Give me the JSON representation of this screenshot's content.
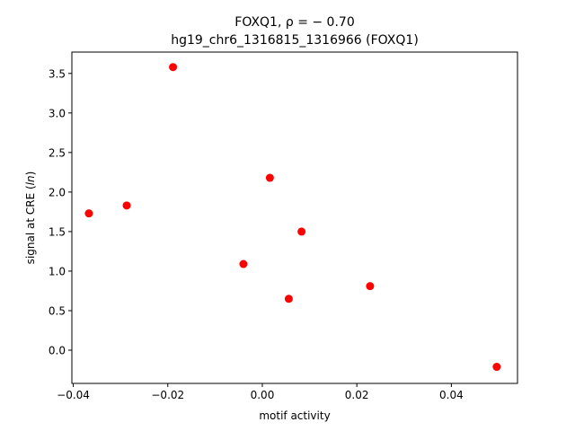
{
  "chart_data": {
    "type": "scatter",
    "title_line1": "FOXQ1, ρ = − 0.70",
    "title_line2": "hg19_chr6_1316815_1316966 (FOXQ1)",
    "xlabel": "motif activity",
    "ylabel_prefix": "signal at CRE (",
    "ylabel_italic": "ln",
    "ylabel_suffix": ")",
    "xlim": [
      -0.0403,
      0.054
    ],
    "ylim": [
      -0.42,
      3.77
    ],
    "xticks": [
      -0.04,
      -0.02,
      0.0,
      0.02,
      0.04
    ],
    "xtick_labels": [
      "−0.04",
      "−0.02",
      "0.00",
      "0.02",
      "0.04"
    ],
    "yticks": [
      0.0,
      0.5,
      1.0,
      1.5,
      2.0,
      2.5,
      3.0,
      3.5
    ],
    "ytick_labels": [
      "0.0",
      "0.5",
      "1.0",
      "1.5",
      "2.0",
      "2.5",
      "3.0",
      "3.5"
    ],
    "grid": false,
    "point_color": "#ff0000",
    "points": [
      {
        "x": -0.0367,
        "y": 1.73
      },
      {
        "x": -0.0287,
        "y": 1.83
      },
      {
        "x": -0.0189,
        "y": 3.58
      },
      {
        "x": -0.004,
        "y": 1.09
      },
      {
        "x": 0.0016,
        "y": 2.18
      },
      {
        "x": 0.0056,
        "y": 0.65
      },
      {
        "x": 0.0083,
        "y": 1.5
      },
      {
        "x": 0.0228,
        "y": 0.81
      },
      {
        "x": 0.0496,
        "y": -0.21
      }
    ]
  }
}
